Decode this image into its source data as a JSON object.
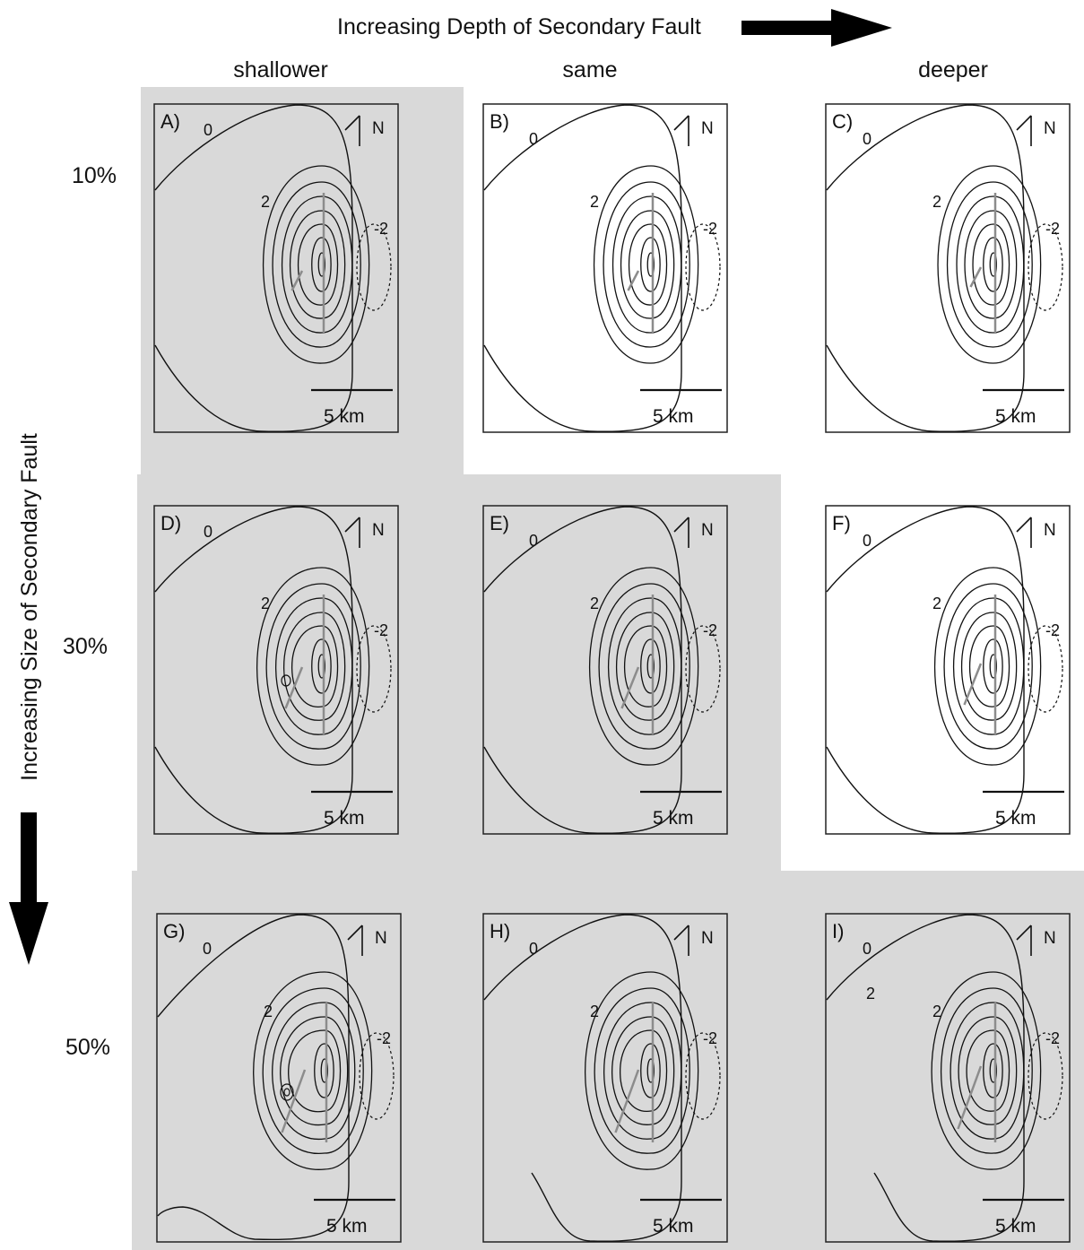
{
  "header": {
    "title": "Increasing Depth of Secondary Fault"
  },
  "side_title": "Increasing Size of Secondary Fault",
  "columns": [
    "shallower",
    "same",
    "deeper"
  ],
  "rows": [
    "10%",
    "30%",
    "50%"
  ],
  "north_label": "N",
  "scale_label": "5 km",
  "contour_labels": {
    "zero": "0",
    "two": "2",
    "neg_two": "-2"
  },
  "colors": {
    "shaded_background": "#d9d9d9",
    "fault_trace": "#8c8c8c",
    "contour": "#111111"
  },
  "icons": {
    "header_arrow": "right-arrow-icon",
    "side_arrow": "down-arrow-icon",
    "north_arrow": "north-arrow-icon"
  },
  "panels": [
    {
      "letter": "A)",
      "shaded": true,
      "depth": "shallower",
      "size": "10%",
      "extra_two_label": ""
    },
    {
      "letter": "B)",
      "shaded": false,
      "depth": "same",
      "size": "10%",
      "extra_two_label": ""
    },
    {
      "letter": "C)",
      "shaded": false,
      "depth": "deeper",
      "size": "10%",
      "extra_two_label": ""
    },
    {
      "letter": "D)",
      "shaded": true,
      "depth": "shallower",
      "size": "30%",
      "extra_two_label": ""
    },
    {
      "letter": "E)",
      "shaded": true,
      "depth": "same",
      "size": "30%",
      "extra_two_label": ""
    },
    {
      "letter": "F)",
      "shaded": false,
      "depth": "deeper",
      "size": "30%",
      "extra_two_label": ""
    },
    {
      "letter": "G)",
      "shaded": true,
      "depth": "shallower",
      "size": "50%",
      "extra_two_label": ""
    },
    {
      "letter": "H)",
      "shaded": true,
      "depth": "same",
      "size": "50%",
      "extra_two_label": ""
    },
    {
      "letter": "I)",
      "shaded": true,
      "depth": "deeper",
      "size": "50%",
      "extra_two_label": "2"
    }
  ]
}
